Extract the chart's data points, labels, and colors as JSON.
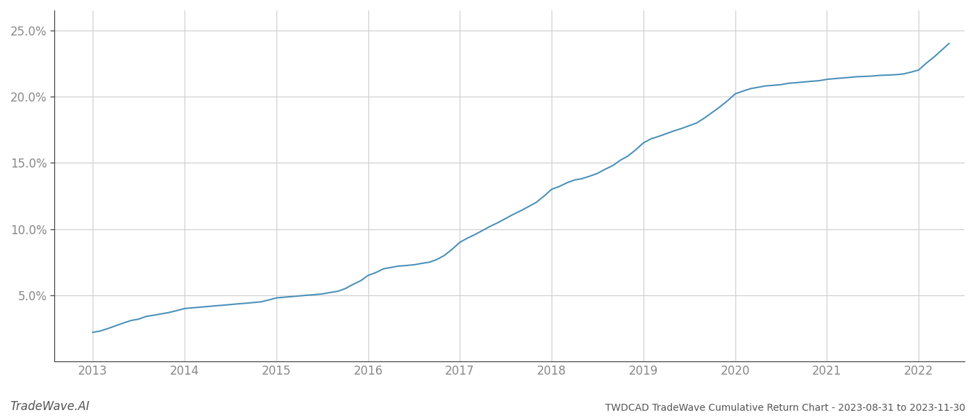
{
  "title": "TWDCAD TradeWave Cumulative Return Chart - 2023-08-31 to 2023-11-30",
  "watermark": "TradeWave.AI",
  "line_color": "#4a90b8",
  "background_color": "#ffffff",
  "grid_color": "#cccccc",
  "x_years": [
    2013,
    2014,
    2015,
    2016,
    2017,
    2018,
    2019,
    2020,
    2021,
    2022
  ],
  "x_values": [
    2013.0,
    2013.08,
    2013.17,
    2013.25,
    2013.33,
    2013.42,
    2013.5,
    2013.58,
    2013.67,
    2013.75,
    2013.83,
    2013.92,
    2014.0,
    2014.08,
    2014.17,
    2014.25,
    2014.33,
    2014.42,
    2014.5,
    2014.58,
    2014.67,
    2014.75,
    2014.83,
    2014.92,
    2015.0,
    2015.08,
    2015.17,
    2015.25,
    2015.33,
    2015.42,
    2015.5,
    2015.58,
    2015.67,
    2015.75,
    2015.83,
    2015.92,
    2016.0,
    2016.08,
    2016.17,
    2016.25,
    2016.33,
    2016.42,
    2016.5,
    2016.58,
    2016.67,
    2016.75,
    2016.83,
    2016.92,
    2017.0,
    2017.08,
    2017.17,
    2017.25,
    2017.33,
    2017.42,
    2017.5,
    2017.58,
    2017.67,
    2017.75,
    2017.83,
    2017.92,
    2018.0,
    2018.08,
    2018.17,
    2018.25,
    2018.33,
    2018.42,
    2018.5,
    2018.58,
    2018.67,
    2018.75,
    2018.83,
    2018.92,
    2019.0,
    2019.08,
    2019.17,
    2019.25,
    2019.33,
    2019.42,
    2019.5,
    2019.58,
    2019.67,
    2019.75,
    2019.83,
    2019.92,
    2020.0,
    2020.08,
    2020.17,
    2020.25,
    2020.33,
    2020.42,
    2020.5,
    2020.58,
    2020.67,
    2020.75,
    2020.83,
    2020.92,
    2021.0,
    2021.08,
    2021.17,
    2021.25,
    2021.33,
    2021.42,
    2021.5,
    2021.58,
    2021.67,
    2021.75,
    2021.83,
    2021.92,
    2022.0,
    2022.08,
    2022.17,
    2022.25,
    2022.33
  ],
  "y_values": [
    2.2,
    2.3,
    2.5,
    2.7,
    2.9,
    3.1,
    3.2,
    3.4,
    3.5,
    3.6,
    3.7,
    3.85,
    4.0,
    4.05,
    4.1,
    4.15,
    4.2,
    4.25,
    4.3,
    4.35,
    4.4,
    4.45,
    4.5,
    4.65,
    4.8,
    4.85,
    4.9,
    4.95,
    5.0,
    5.05,
    5.1,
    5.2,
    5.3,
    5.5,
    5.8,
    6.1,
    6.5,
    6.7,
    7.0,
    7.1,
    7.2,
    7.25,
    7.3,
    7.4,
    7.5,
    7.7,
    8.0,
    8.5,
    9.0,
    9.3,
    9.6,
    9.9,
    10.2,
    10.5,
    10.8,
    11.1,
    11.4,
    11.7,
    12.0,
    12.5,
    13.0,
    13.2,
    13.5,
    13.7,
    13.8,
    14.0,
    14.2,
    14.5,
    14.8,
    15.2,
    15.5,
    16.0,
    16.5,
    16.8,
    17.0,
    17.2,
    17.4,
    17.6,
    17.8,
    18.0,
    18.4,
    18.8,
    19.2,
    19.7,
    20.2,
    20.4,
    20.6,
    20.7,
    20.8,
    20.85,
    20.9,
    21.0,
    21.05,
    21.1,
    21.15,
    21.2,
    21.3,
    21.35,
    21.4,
    21.45,
    21.5,
    21.52,
    21.55,
    21.6,
    21.62,
    21.65,
    21.7,
    21.85,
    22.0,
    22.5,
    23.0,
    23.5,
    24.0
  ],
  "ylim": [
    0.0,
    26.5
  ],
  "yticks": [
    5.0,
    10.0,
    15.0,
    20.0,
    25.0
  ],
  "ytick_labels": [
    "5.0%",
    "10.0%",
    "15.0%",
    "20.0%",
    "25.0%"
  ],
  "xlim": [
    2012.58,
    2022.5
  ],
  "title_fontsize": 10,
  "tick_fontsize": 12,
  "watermark_fontsize": 12,
  "line_width": 1.5
}
